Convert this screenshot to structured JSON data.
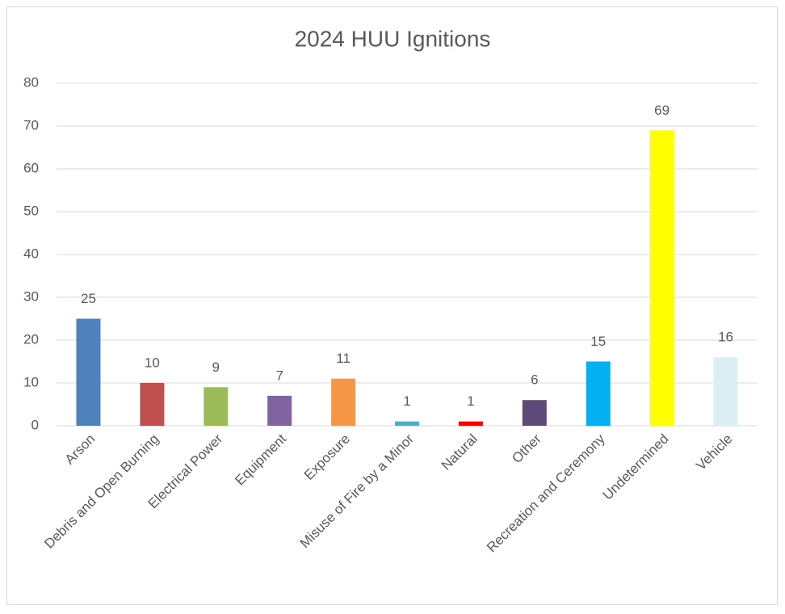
{
  "chart_data": {
    "type": "bar",
    "title": "2024 HUU Ignitions",
    "categories": [
      "Arson",
      "Debris and Open Burning",
      "Electrical Power",
      "Equipment",
      "Exposure",
      "Misuse of Fire by a Minor",
      "Natural",
      "Other",
      "Recreation and Ceremony",
      "Undetermined",
      "Vehicle"
    ],
    "values": [
      25,
      10,
      9,
      7,
      11,
      1,
      1,
      6,
      15,
      69,
      16
    ],
    "colors": [
      "#4f81bd",
      "#c0504d",
      "#9bbb59",
      "#8064a2",
      "#f79646",
      "#4bacc6",
      "#ff0000",
      "#5f497a",
      "#00b0f0",
      "#ffff00",
      "#dbeef4"
    ],
    "ylim": [
      0,
      80
    ],
    "yticks": [
      0,
      10,
      20,
      30,
      40,
      50,
      60,
      70,
      80
    ],
    "grid": true,
    "data_labels": true
  }
}
